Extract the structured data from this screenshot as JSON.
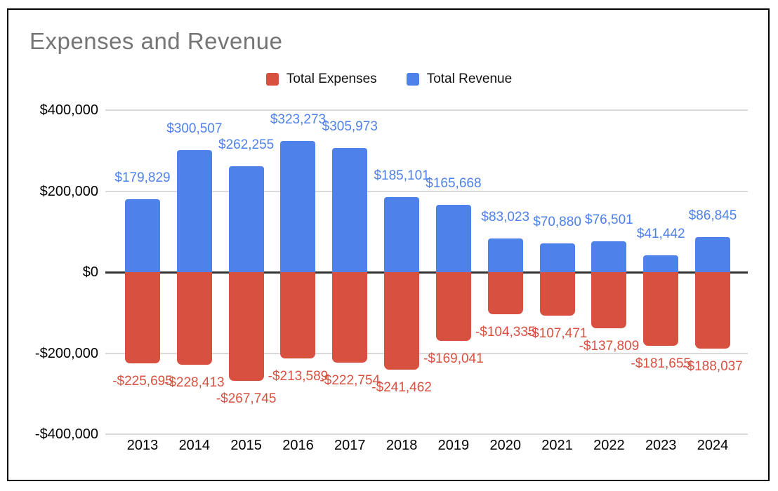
{
  "window": {
    "title": "Expenses and Revenue"
  },
  "legend": {
    "items": [
      {
        "label": "Total Expenses",
        "color": "#d85140"
      },
      {
        "label": "Total Revenue",
        "color": "#4e81e9"
      }
    ]
  },
  "chart_data": {
    "type": "bar",
    "stacked": true,
    "title": "Expenses and Revenue",
    "categories": [
      "2013",
      "2014",
      "2015",
      "2016",
      "2017",
      "2018",
      "2019",
      "2020",
      "2021",
      "2022",
      "2023",
      "2024"
    ],
    "series": [
      {
        "name": "Total Expenses",
        "color": "#d85140",
        "values": [
          -225695,
          -228413,
          -267745,
          -213589,
          -222754,
          -241462,
          -169041,
          -104335,
          -107471,
          -137809,
          -181655,
          -188037
        ],
        "labels": [
          "-$225,695",
          "-$228,413",
          "-$267,745",
          "-$213,589",
          "-$222,754",
          "-$241,462",
          "-$169,041",
          "-$104,335",
          "-$107,471",
          "-$137,809",
          "-$181,655",
          "-$188,037"
        ]
      },
      {
        "name": "Total Revenue",
        "color": "#4e81e9",
        "values": [
          179829,
          300507,
          262255,
          323273,
          305973,
          185101,
          165668,
          83023,
          70880,
          76501,
          41442,
          86845
        ],
        "labels": [
          "$179,829",
          "$300,507",
          "$262,255",
          "$323,273",
          "$305,973",
          "$185,101",
          "$165,668",
          "$83,023",
          "$70,880",
          "$76,501",
          "$41,442",
          "$86,845"
        ]
      }
    ],
    "y_axis": {
      "range": [
        -400000,
        400000
      ],
      "ticks": [
        {
          "value": 400000,
          "label": "$400,000"
        },
        {
          "value": 200000,
          "label": "$200,000"
        },
        {
          "value": 0,
          "label": "$0"
        },
        {
          "value": -200000,
          "label": "-$200,000"
        },
        {
          "value": -400000,
          "label": "-$400,000"
        }
      ]
    },
    "grid": true,
    "legend_position": "top",
    "xlabel": "",
    "ylabel": ""
  },
  "colors": {
    "title_text": "#757575",
    "grid_line": "#d9d9d9",
    "zero_line": "#333333",
    "axis_text": "#000000",
    "frame_border": "#000000"
  }
}
